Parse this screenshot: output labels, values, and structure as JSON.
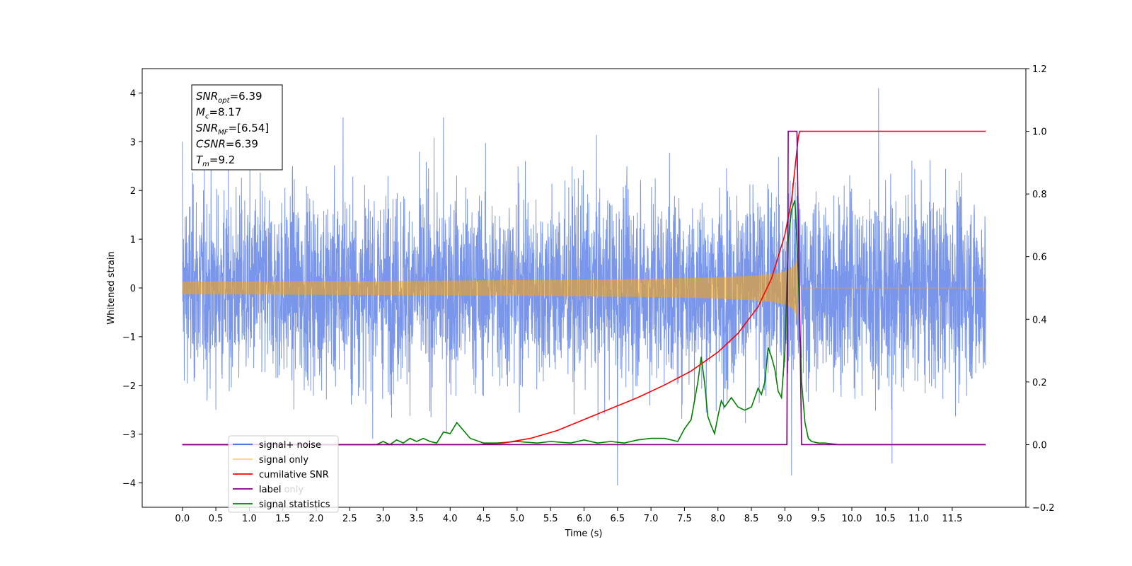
{
  "chart_data": {
    "type": "line",
    "title": "",
    "xlabel": "Time (s)",
    "ylabel": "Whitened strain",
    "ylabel_right": "",
    "xlim": [
      -0.6,
      12.6
    ],
    "ylim": [
      -4.5,
      4.5
    ],
    "ylim_right": [
      -0.2,
      1.2
    ],
    "x_ticks": [
      0.0,
      0.5,
      1.0,
      1.5,
      2.0,
      2.5,
      3.0,
      3.5,
      4.0,
      4.5,
      5.0,
      5.5,
      6.0,
      6.5,
      7.0,
      7.5,
      8.0,
      8.5,
      9.0,
      9.5,
      10.0,
      10.5,
      11.0,
      11.5
    ],
    "x_tick_labels": [
      "0.0",
      "0.5",
      "1.0",
      "1.5",
      "2.0",
      "2.5",
      "3.0",
      "3.5",
      "4.0",
      "4.5",
      "5.0",
      "5.5",
      "6.0",
      "6.5",
      "7.0",
      "7.5",
      "8.0",
      "8.5",
      "9.0",
      "9.5",
      "10.0",
      "10.5",
      "11.0",
      "11.5"
    ],
    "y_ticks": [
      -4,
      -3,
      -2,
      -1,
      0,
      1,
      2,
      3,
      4
    ],
    "y_tick_labels": [
      "−4",
      "−3",
      "−2",
      "−1",
      "0",
      "1",
      "2",
      "3",
      "4"
    ],
    "y_right_ticks": [
      -0.2,
      0.0,
      0.2,
      0.4,
      0.6,
      0.8,
      1.0,
      1.2
    ],
    "y_right_tick_labels": [
      "−0.2",
      "0.0",
      "0.2",
      "0.4",
      "0.6",
      "0.8",
      "1.0",
      "1.2"
    ],
    "grid": false,
    "legend_position": "lower-left",
    "stats_box": {
      "lines": [
        {
          "base": "SNR",
          "sub": "opt",
          "value": "=6.39"
        },
        {
          "base": "M",
          "sub": "c",
          "value": "=8.17"
        },
        {
          "base": "SNR",
          "sub": "MF",
          "value": "=[6.54]"
        },
        {
          "base": "CSNR",
          "sub": "",
          "value": "=6.39"
        },
        {
          "base": "T",
          "sub": "m",
          "value": "=9.2"
        }
      ]
    },
    "series": [
      {
        "name": "signal+ noise",
        "axis": "left",
        "color": "#4169e1",
        "kind": "noise",
        "t_start": 0.0,
        "t_end": 12.0,
        "sigma": 1.0,
        "note_peaks": {
          "x": [
            0.0,
            2.4,
            3.9,
            6.5,
            9.1,
            10.4,
            10.6
          ],
          "y": [
            3.0,
            3.5,
            3.5,
            -4.05,
            -3.85,
            4.1,
            -3.6
          ]
        }
      },
      {
        "name": "signal only",
        "axis": "left",
        "color": "#ffa500",
        "kind": "chirp",
        "t_start": 0.0,
        "t_end": 12.0,
        "merger_time": 9.2,
        "peak_amplitude": 1.15
      },
      {
        "name": "cumilative SNR",
        "axis": "right",
        "color": "#ff0000",
        "x": [
          0.0,
          4.4,
          4.8,
          5.2,
          5.6,
          6.0,
          6.4,
          6.8,
          7.2,
          7.6,
          8.0,
          8.3,
          8.6,
          8.8,
          9.0,
          9.1,
          9.2,
          9.22,
          12.0
        ],
        "values": [
          0.0,
          0.0,
          0.005,
          0.02,
          0.045,
          0.08,
          0.115,
          0.15,
          0.19,
          0.235,
          0.295,
          0.355,
          0.44,
          0.53,
          0.67,
          0.78,
          0.98,
          1.0,
          1.0
        ]
      },
      {
        "name": "label",
        "axis": "right",
        "color": "#800080",
        "x": [
          0.0,
          9.03,
          9.05,
          9.18,
          9.25,
          12.0
        ],
        "values": [
          0.0,
          0.0,
          1.0,
          1.0,
          0.0,
          0.0
        ]
      },
      {
        "name": "signal statistics",
        "axis": "right",
        "color": "#008000",
        "x": [
          0.0,
          2.9,
          3.0,
          3.1,
          3.2,
          3.3,
          3.4,
          3.5,
          3.6,
          3.7,
          3.8,
          3.9,
          4.0,
          4.1,
          4.2,
          4.3,
          4.5,
          4.7,
          5.0,
          5.3,
          5.5,
          5.8,
          6.0,
          6.2,
          6.4,
          6.6,
          6.8,
          7.0,
          7.2,
          7.4,
          7.5,
          7.6,
          7.7,
          7.75,
          7.8,
          7.85,
          7.9,
          7.95,
          8.0,
          8.05,
          8.1,
          8.2,
          8.3,
          8.4,
          8.5,
          8.6,
          8.65,
          8.7,
          8.75,
          8.8,
          8.85,
          8.9,
          8.95,
          9.0,
          9.05,
          9.1,
          9.15,
          9.2,
          9.25,
          9.3,
          9.35,
          9.4,
          9.5,
          9.6,
          9.8,
          10.0,
          10.5,
          11.0,
          12.0
        ],
        "values": [
          0.0,
          0.0,
          0.01,
          0.0,
          0.015,
          0.005,
          0.02,
          0.01,
          0.02,
          0.01,
          0.005,
          0.04,
          0.035,
          0.07,
          0.045,
          0.02,
          0.005,
          0.005,
          0.01,
          0.005,
          0.01,
          0.005,
          0.015,
          0.005,
          0.01,
          0.005,
          0.015,
          0.02,
          0.02,
          0.01,
          0.05,
          0.08,
          0.2,
          0.28,
          0.2,
          0.09,
          0.06,
          0.035,
          0.09,
          0.14,
          0.12,
          0.15,
          0.12,
          0.11,
          0.12,
          0.18,
          0.16,
          0.2,
          0.31,
          0.28,
          0.24,
          0.17,
          0.15,
          0.3,
          0.65,
          0.75,
          0.78,
          0.55,
          0.2,
          0.07,
          0.02,
          0.01,
          0.005,
          0.005,
          0.0,
          0.0,
          0.0,
          0.0,
          0.0
        ]
      },
      {
        "name": "label only",
        "axis": "right",
        "color": "#d3d3d3",
        "kind": "legend-only"
      }
    ],
    "legend_order": [
      "signal+ noise",
      "signal only",
      "cumilative SNR",
      "label",
      "signal statistics"
    ],
    "legend_hidden_entry": "label only"
  }
}
